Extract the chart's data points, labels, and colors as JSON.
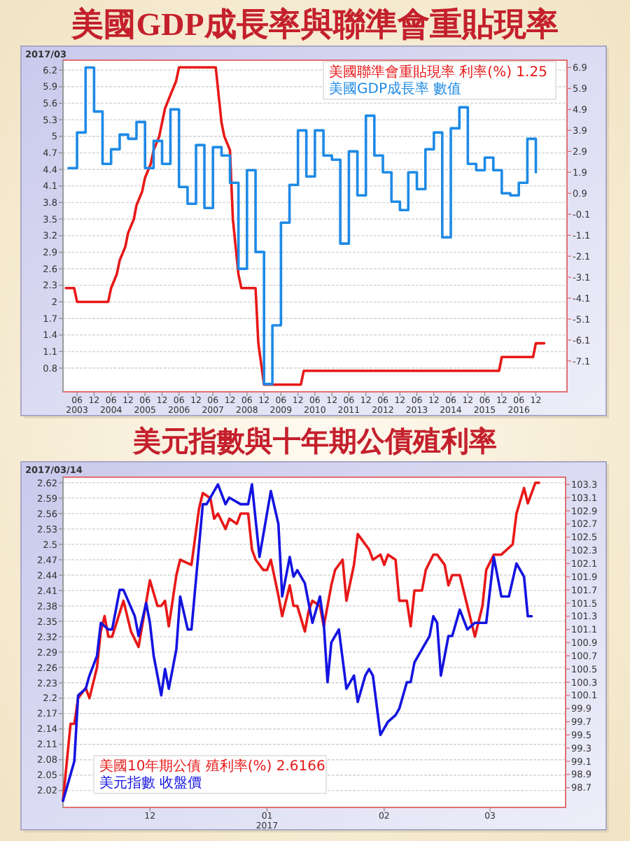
{
  "chart_data": [
    {
      "type": "line",
      "title": "美國GDP成長率與聯準會重貼現率",
      "annotations": [
        "2017/03"
      ],
      "grid": "y",
      "legend": "top right",
      "xlim": [
        "2003-01",
        "2017-11"
      ],
      "xticks": [
        {
          "value": "2003-06",
          "label": "06\n2003"
        },
        {
          "value": "2003-12",
          "label": "12"
        },
        {
          "value": "2004-06",
          "label": "06\n2004"
        },
        {
          "value": "2004-12",
          "label": "12"
        },
        {
          "value": "2005-06",
          "label": "06\n2005"
        },
        {
          "value": "2005-12",
          "label": "12"
        },
        {
          "value": "2006-06",
          "label": "06\n2006"
        },
        {
          "value": "2006-12",
          "label": "12"
        },
        {
          "value": "2007-06",
          "label": "06\n2007"
        },
        {
          "value": "2007-12",
          "label": "12"
        },
        {
          "value": "2008-06",
          "label": "06\n2008"
        },
        {
          "value": "2008-12",
          "label": "12"
        },
        {
          "value": "2009-06",
          "label": "06\n2009"
        },
        {
          "value": "2009-12",
          "label": "12"
        },
        {
          "value": "2010-06",
          "label": "06\n2010"
        },
        {
          "value": "2010-12",
          "label": "12"
        },
        {
          "value": "2011-06",
          "label": "06\n2011"
        },
        {
          "value": "2011-12",
          "label": "12"
        },
        {
          "value": "2012-06",
          "label": "06\n2012"
        },
        {
          "value": "2012-12",
          "label": "12"
        },
        {
          "value": "2013-06",
          "label": "06\n2013"
        },
        {
          "value": "2013-12",
          "label": "12"
        },
        {
          "value": "2014-06",
          "label": "06\n2014"
        },
        {
          "value": "2014-12",
          "label": "12"
        },
        {
          "value": "2015-06",
          "label": "06\n2015"
        },
        {
          "value": "2015-12",
          "label": "12"
        },
        {
          "value": "2016-06",
          "label": "06\n2016"
        },
        {
          "value": "2016-12",
          "label": "12"
        }
      ],
      "ylim": [
        0.37,
        6.38
      ],
      "yticks": [
        0.8,
        1.1,
        1.4,
        1.7,
        2,
        2.3,
        2.6,
        2.9,
        3.2,
        3.5,
        3.8,
        4.1,
        4.4,
        4.7,
        5,
        5.3,
        5.6,
        5.9,
        6.2
      ],
      "y2lim": [
        -8.57,
        7.25
      ],
      "y2ticks": [
        -7.1,
        -6.1,
        -5.1,
        -4.1,
        -3.1,
        -2.1,
        -1.1,
        -0.1,
        0.9,
        1.9,
        2.9,
        3.9,
        4.9,
        5.9,
        6.9
      ],
      "series": [
        {
          "name": "美國聯準會重貼現率 利率(%) 1.25",
          "color": "#e81818",
          "type": "line",
          "x": [
            "2003-02",
            "2003-05",
            "2003-06",
            "2004-05",
            "2004-06",
            "2004-08",
            "2004-09",
            "2004-11",
            "2004-12",
            "2005-02",
            "2005-03",
            "2005-05",
            "2005-06",
            "2005-08",
            "2005-09",
            "2005-11",
            "2005-12",
            "2006-01",
            "2006-03",
            "2006-05",
            "2006-06",
            "2007-07",
            "2007-08",
            "2007-09",
            "2007-10",
            "2007-12",
            "2008-01",
            "2008-03",
            "2008-04",
            "2008-09",
            "2008-10",
            "2008-12",
            "2010-01",
            "2010-02",
            "2015-11",
            "2015-12",
            "2016-11",
            "2016-12",
            "2017-03"
          ],
          "values": [
            2.25,
            2.25,
            2,
            2,
            2.25,
            2.5,
            2.75,
            3,
            3.25,
            3.5,
            3.75,
            4,
            4.25,
            4.5,
            4.75,
            5,
            5.25,
            5.5,
            5.75,
            6,
            6.25,
            6.25,
            5.75,
            5.25,
            5,
            4.75,
            3.5,
            2.5,
            2.25,
            2.25,
            1.25,
            0.5,
            0.5,
            0.75,
            0.75,
            1,
            1,
            1.25,
            1.25
          ]
        },
        {
          "name": "美國GDP成長率 數值",
          "color": "#1e8ae6",
          "type": "step",
          "axis": "y2",
          "x": [
            "2003-03",
            "2003-06",
            "2003-09",
            "2003-12",
            "2004-03",
            "2004-06",
            "2004-09",
            "2004-12",
            "2005-03",
            "2005-06",
            "2005-09",
            "2005-12",
            "2006-03",
            "2006-06",
            "2006-09",
            "2006-12",
            "2007-03",
            "2007-06",
            "2007-09",
            "2007-12",
            "2008-03",
            "2008-06",
            "2008-09",
            "2008-12",
            "2009-03",
            "2009-06",
            "2009-09",
            "2009-12",
            "2010-03",
            "2010-06",
            "2010-09",
            "2010-12",
            "2011-03",
            "2011-06",
            "2011-09",
            "2011-12",
            "2012-03",
            "2012-06",
            "2012-09",
            "2012-12",
            "2013-03",
            "2013-06",
            "2013-09",
            "2013-12",
            "2014-03",
            "2014-06",
            "2014-09",
            "2014-12",
            "2015-03",
            "2015-06",
            "2015-09",
            "2015-12",
            "2016-03",
            "2016-06",
            "2016-09",
            "2016-12"
          ],
          "values": [
            2.1,
            3.8,
            6.9,
            4.8,
            2.3,
            3.0,
            3.7,
            3.5,
            4.3,
            2.1,
            3.4,
            2.3,
            4.9,
            1.2,
            0.4,
            3.2,
            0.2,
            3.1,
            2.7,
            1.4,
            -2.7,
            2.0,
            -1.9,
            -8.2,
            -5.4,
            -0.5,
            1.3,
            3.9,
            1.7,
            3.9,
            2.7,
            2.5,
            -1.5,
            2.9,
            0.8,
            4.6,
            2.7,
            1.9,
            0.5,
            0.1,
            1.9,
            1.1,
            3.0,
            3.8,
            -1.2,
            4.0,
            5.0,
            2.3,
            2.0,
            2.6,
            2.0,
            0.9,
            0.8,
            1.4,
            3.5,
            1.9
          ]
        }
      ]
    },
    {
      "type": "line",
      "title": "美元指數與十年期公債殖利率",
      "annotations": [
        "2017/03/14"
      ],
      "grid": "y",
      "legend": "bottom left",
      "xlim": [
        "2016-11-08",
        "2017-03-21"
      ],
      "xticks": [
        {
          "value": "2016-12-01",
          "label": "12"
        },
        {
          "value": "2017-01-01",
          "label": "01\n2017"
        },
        {
          "value": "2017-02-01",
          "label": "02"
        },
        {
          "value": "2017-03-01",
          "label": "03"
        }
      ],
      "ylim": [
        1.987,
        2.631
      ],
      "yticks": [
        2.02,
        2.05,
        2.08,
        2.11,
        2.14,
        2.17,
        2.2,
        2.23,
        2.26,
        2.29,
        2.32,
        2.35,
        2.38,
        2.41,
        2.44,
        2.47,
        2.5,
        2.53,
        2.56,
        2.59,
        2.62
      ],
      "y2lim": [
        98.4,
        103.41
      ],
      "y2ticks": [
        98.7,
        98.9,
        99.1,
        99.3,
        99.5,
        99.7,
        99.9,
        100.1,
        100.3,
        100.5,
        100.7,
        100.9,
        101.1,
        101.3,
        101.5,
        101.7,
        101.9,
        102.1,
        102.3,
        102.5,
        102.7,
        102.9,
        103.1,
        103.3
      ],
      "series": [
        {
          "name": "美國10年期公債 殖利率(%) 2.6166",
          "color": "#e81818",
          "type": "line",
          "x": [
            "2016-11-08",
            "2016-11-10",
            "2016-11-11",
            "2016-11-12",
            "2016-11-14",
            "2016-11-15",
            "2016-11-17",
            "2016-11-18",
            "2016-11-19",
            "2016-11-20",
            "2016-11-21",
            "2016-11-24",
            "2016-11-26",
            "2016-11-28",
            "2016-12-01",
            "2016-12-03",
            "2016-12-04",
            "2016-12-05",
            "2016-12-06",
            "2016-12-08",
            "2016-12-09",
            "2016-12-12",
            "2016-12-14",
            "2016-12-15",
            "2016-12-17",
            "2016-12-18",
            "2016-12-19",
            "2016-12-21",
            "2016-12-22",
            "2016-12-24",
            "2016-12-25",
            "2016-12-27",
            "2016-12-28",
            "2016-12-29",
            "2016-12-31",
            "2017-01-01",
            "2017-01-02",
            "2017-01-04",
            "2017-01-05",
            "2017-01-07",
            "2017-01-08",
            "2017-01-09",
            "2017-01-11",
            "2017-01-12",
            "2017-01-13",
            "2017-01-15",
            "2017-01-16",
            "2017-01-18",
            "2017-01-19",
            "2017-01-21",
            "2017-01-22",
            "2017-01-24",
            "2017-01-25",
            "2017-01-26",
            "2017-01-28",
            "2017-01-29",
            "2017-01-31",
            "2017-02-01",
            "2017-02-02",
            "2017-02-04",
            "2017-02-05",
            "2017-02-07",
            "2017-02-08",
            "2017-02-09",
            "2017-02-11",
            "2017-02-12",
            "2017-02-14",
            "2017-02-15",
            "2017-02-17",
            "2017-02-18",
            "2017-02-19",
            "2017-02-21",
            "2017-02-22",
            "2017-02-23",
            "2017-02-25",
            "2017-02-27",
            "2017-02-28",
            "2017-03-02",
            "2017-03-04",
            "2017-03-07",
            "2017-03-08",
            "2017-03-10",
            "2017-03-11",
            "2017-03-13",
            "2017-03-14"
          ],
          "values": [
            2.0,
            2.15,
            2.15,
            2.2,
            2.22,
            2.2,
            2.26,
            2.33,
            2.36,
            2.32,
            2.32,
            2.39,
            2.33,
            2.3,
            2.43,
            2.38,
            2.38,
            2.39,
            2.34,
            2.44,
            2.47,
            2.46,
            2.57,
            2.6,
            2.59,
            2.55,
            2.56,
            2.53,
            2.55,
            2.54,
            2.56,
            2.56,
            2.49,
            2.47,
            2.45,
            2.45,
            2.47,
            2.4,
            2.36,
            2.42,
            2.38,
            2.38,
            2.33,
            2.37,
            2.39,
            2.38,
            2.34,
            2.42,
            2.45,
            2.47,
            2.39,
            2.46,
            2.52,
            2.51,
            2.49,
            2.47,
            2.48,
            2.46,
            2.48,
            2.47,
            2.39,
            2.39,
            2.34,
            2.41,
            2.41,
            2.45,
            2.48,
            2.48,
            2.46,
            2.42,
            2.44,
            2.44,
            2.41,
            2.38,
            2.32,
            2.38,
            2.45,
            2.48,
            2.48,
            2.5,
            2.56,
            2.61,
            2.58,
            2.62,
            2.62
          ]
        },
        {
          "name": "美元指數 收盤價",
          "color": "#1414e0",
          "type": "line",
          "axis": "y2",
          "x": [
            "2016-11-08",
            "2016-11-11",
            "2016-11-12",
            "2016-11-14",
            "2016-11-15",
            "2016-11-17",
            "2016-11-18",
            "2016-11-20",
            "2016-11-21",
            "2016-11-23",
            "2016-11-24",
            "2016-11-27",
            "2016-11-28",
            "2016-11-30",
            "2016-12-01",
            "2016-12-02",
            "2016-12-04",
            "2016-12-05",
            "2016-12-06",
            "2016-12-08",
            "2016-12-09",
            "2016-12-11",
            "2016-12-12",
            "2016-12-15",
            "2016-12-16",
            "2016-12-19",
            "2016-12-21",
            "2016-12-22",
            "2016-12-25",
            "2016-12-27",
            "2016-12-28",
            "2016-12-30",
            "2017-01-02",
            "2017-01-04",
            "2017-01-05",
            "2017-01-07",
            "2017-01-08",
            "2017-01-09",
            "2017-01-11",
            "2017-01-12",
            "2017-01-13",
            "2017-01-15",
            "2017-01-16",
            "2017-01-17",
            "2017-01-18",
            "2017-01-20",
            "2017-01-22",
            "2017-01-24",
            "2017-01-25",
            "2017-01-27",
            "2017-01-28",
            "2017-01-29",
            "2017-01-31",
            "2017-02-02",
            "2017-02-04",
            "2017-02-05",
            "2017-02-07",
            "2017-02-08",
            "2017-02-09",
            "2017-02-11",
            "2017-02-13",
            "2017-02-14",
            "2017-02-15",
            "2017-02-16",
            "2017-02-18",
            "2017-02-19",
            "2017-02-21",
            "2017-02-23",
            "2017-02-25",
            "2017-02-28",
            "2017-03-02",
            "2017-03-04",
            "2017-03-06",
            "2017-03-08",
            "2017-03-10",
            "2017-03-11",
            "2017-03-12"
          ],
          "values": [
            98.5,
            99.1,
            100.1,
            100.2,
            100.4,
            100.7,
            101.2,
            101.1,
            101.1,
            101.7,
            101.7,
            101.3,
            101.0,
            101.5,
            101.2,
            100.7,
            100.1,
            100.5,
            100.2,
            100.8,
            101.6,
            101.1,
            101.1,
            103.0,
            103.0,
            103.3,
            103.0,
            103.1,
            103.0,
            103.0,
            103.3,
            102.2,
            103.2,
            102.7,
            101.6,
            102.2,
            101.9,
            102.0,
            101.8,
            101.5,
            101.2,
            101.6,
            101.2,
            100.3,
            100.9,
            101.1,
            100.2,
            100.4,
            100.0,
            100.4,
            100.5,
            100.4,
            99.5,
            99.7,
            99.8,
            99.9,
            100.3,
            100.3,
            100.6,
            100.8,
            101.0,
            101.3,
            101.2,
            100.4,
            101.0,
            101.0,
            101.4,
            101.1,
            101.2,
            101.2,
            102.2,
            101.6,
            101.6,
            102.1,
            101.9,
            101.3,
            101.3
          ]
        }
      ]
    }
  ]
}
